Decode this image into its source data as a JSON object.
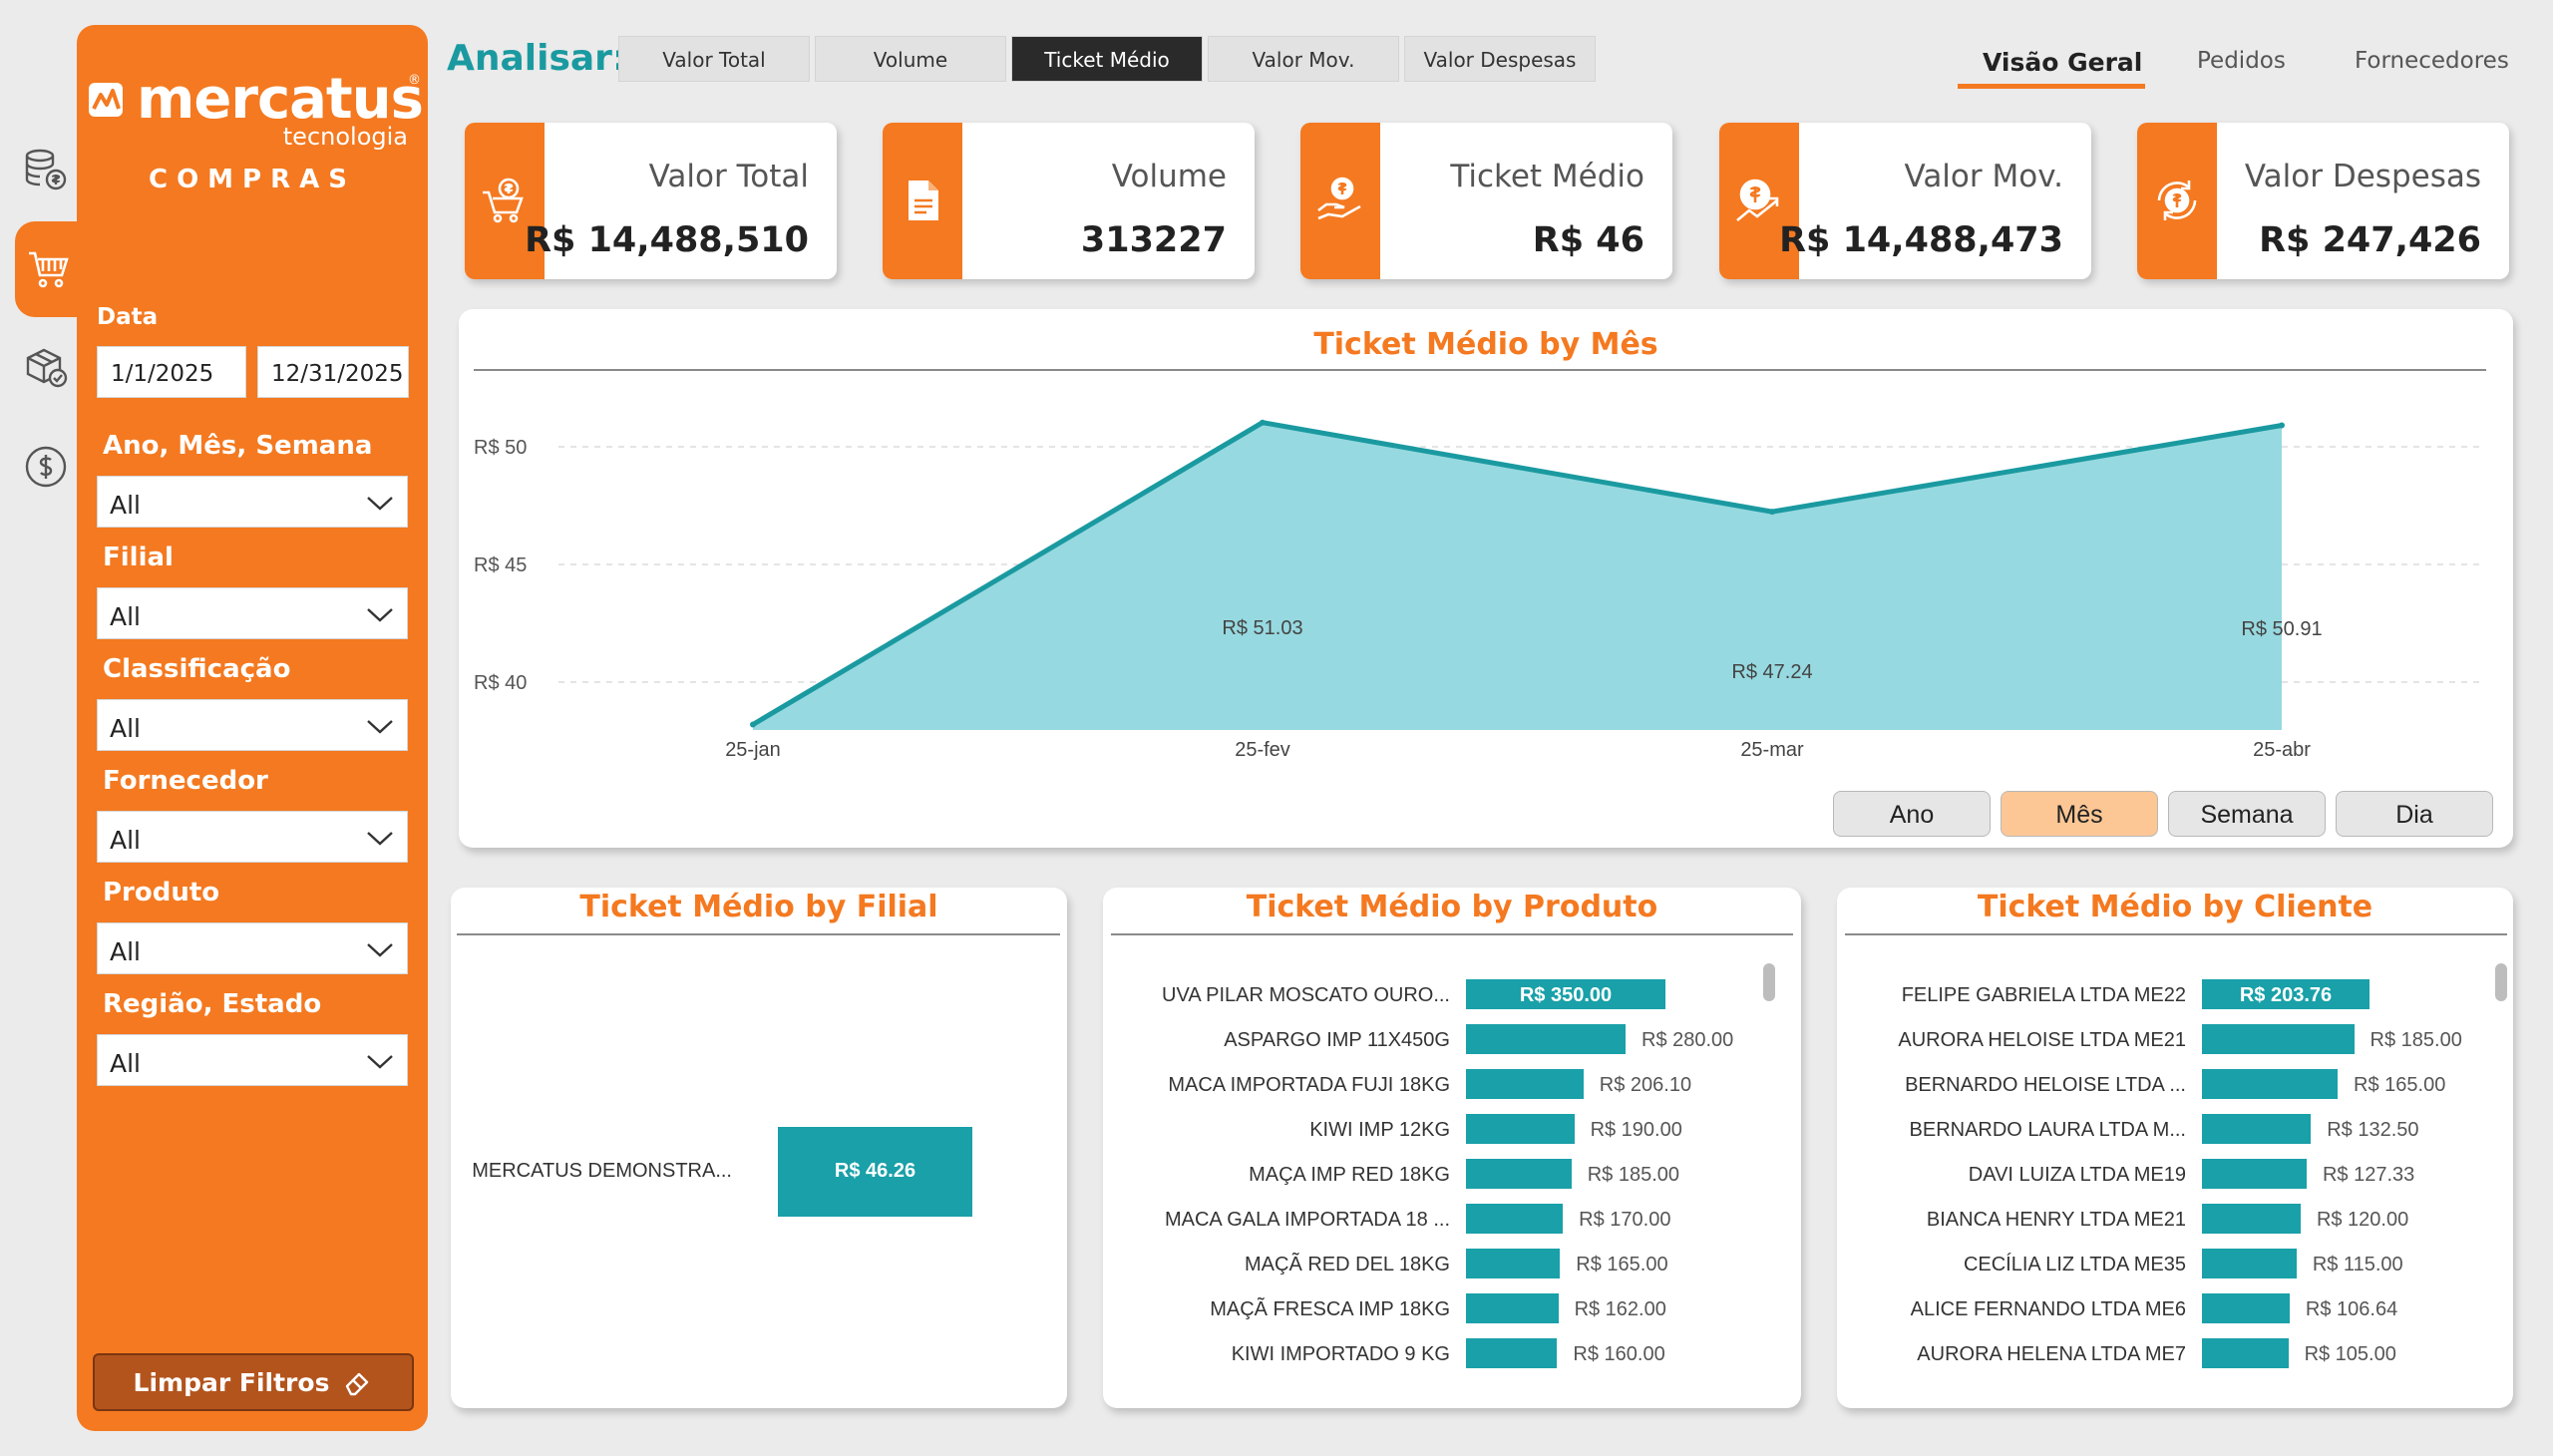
{
  "rail": {
    "items": [
      {
        "icon": "database-money-icon"
      },
      {
        "icon": "shopping-cart-icon",
        "active": true
      },
      {
        "icon": "box-check-icon"
      },
      {
        "icon": "dollar-circle-icon"
      }
    ]
  },
  "sidebar": {
    "brand": "mercatus",
    "brand_sub": "tecnologia",
    "module": "COMPRAS",
    "date_label": "Data",
    "date_from": "1/1/2025",
    "date_to": "12/31/2025",
    "filters": [
      {
        "label": "Ano, Mês, Semana",
        "value": "All"
      },
      {
        "label": "Filial",
        "value": "All"
      },
      {
        "label": "Classificação",
        "value": "All"
      },
      {
        "label": "Fornecedor",
        "value": "All"
      },
      {
        "label": "Produto",
        "value": "All"
      },
      {
        "label": "Região, Estado",
        "value": "All"
      }
    ],
    "clear_label": "Limpar Filtros"
  },
  "analyze": {
    "label": "Analisar:",
    "options": [
      "Valor Total",
      "Volume",
      "Ticket Médio",
      "Valor Mov.",
      "Valor Despesas"
    ],
    "selected": "Ticket Médio"
  },
  "nav": {
    "tabs": [
      "Visão Geral",
      "Pedidos",
      "Fornecedores"
    ],
    "active": "Visão Geral"
  },
  "kpis": [
    {
      "label": "Valor Total",
      "value": "R$ 14,488,510",
      "icon": "cart-money-icon"
    },
    {
      "label": "Volume",
      "value": "313227",
      "icon": "document-icon"
    },
    {
      "label": "Ticket Médio",
      "value": "R$ 46",
      "icon": "hand-money-icon"
    },
    {
      "label": "Valor Mov.",
      "value": "R$ 14,488,473",
      "icon": "money-growth-icon"
    },
    {
      "label": "Valor Despesas",
      "value": "R$ 247,426",
      "icon": "money-cycle-icon"
    }
  ],
  "granularity": {
    "options": [
      "Ano",
      "Mês",
      "Semana",
      "Dia"
    ],
    "selected": "Mês"
  },
  "colors": {
    "accent": "#f47920",
    "teal": "#19a0a8",
    "area_fill": "#97d9e0",
    "line": "#1a9aa0"
  },
  "chart_data": [
    {
      "type": "area",
      "title": "Ticket Médio by Mês",
      "categories": [
        "25-jan",
        "25-fev",
        "25-mar",
        "25-abr"
      ],
      "values": [
        38.2,
        51.03,
        47.24,
        50.91
      ],
      "data_labels": [
        "",
        "R$ 51.03",
        "R$ 47.24",
        "R$ 50.91"
      ],
      "y_ticks": [
        40,
        45,
        50
      ],
      "y_tick_labels": [
        "R$ 40",
        "R$ 45",
        "R$ 50"
      ],
      "ylim": [
        38,
        52.5
      ],
      "grid": true
    },
    {
      "type": "bar",
      "orientation": "horizontal",
      "title": "Ticket Médio by Filial",
      "categories": [
        "MERCATUS DEMONSTRA..."
      ],
      "values": [
        46.26
      ],
      "value_labels": [
        "R$ 46.26"
      ]
    },
    {
      "type": "bar",
      "orientation": "horizontal",
      "title": "Ticket Médio by Produto",
      "categories": [
        "UVA PILAR MOSCATO OURO...",
        "ASPARGO IMP 11X450G",
        "MACA IMPORTADA FUJI 18KG",
        "KIWI IMP 12KG",
        "MAÇA IMP RED 18KG",
        "MACA GALA IMPORTADA 18 ...",
        "MAÇÃ RED DEL 18KG",
        "MAÇÃ FRESCA IMP 18KG",
        "KIWI IMPORTADO 9 KG"
      ],
      "values": [
        350.0,
        280.0,
        206.1,
        190.0,
        185.0,
        170.0,
        165.0,
        162.0,
        160.0
      ],
      "value_labels": [
        "R$ 350.00",
        "R$ 280.00",
        "R$ 206.10",
        "R$ 190.00",
        "R$ 185.00",
        "R$ 170.00",
        "R$ 165.00",
        "R$ 162.00",
        "R$ 160.00"
      ]
    },
    {
      "type": "bar",
      "orientation": "horizontal",
      "title": "Ticket Médio by Cliente",
      "categories": [
        "FELIPE GABRIELA LTDA ME22",
        "AURORA HELOISE LTDA ME21",
        "BERNARDO HELOISE LTDA ...",
        "BERNARDO LAURA LTDA M...",
        "DAVI LUIZA LTDA ME19",
        "BIANCA HENRY LTDA ME21",
        "CECÍLIA LIZ LTDA ME35",
        "ALICE FERNANDO LTDA ME6",
        "AURORA HELENA LTDA ME7"
      ],
      "values": [
        203.76,
        185.0,
        165.0,
        132.5,
        127.33,
        120.0,
        115.0,
        106.64,
        105.0
      ],
      "value_labels": [
        "R$ 203.76",
        "R$ 185.00",
        "R$ 165.00",
        "R$ 132.50",
        "R$ 127.33",
        "R$ 120.00",
        "R$ 115.00",
        "R$ 106.64",
        "R$ 105.00"
      ]
    }
  ]
}
